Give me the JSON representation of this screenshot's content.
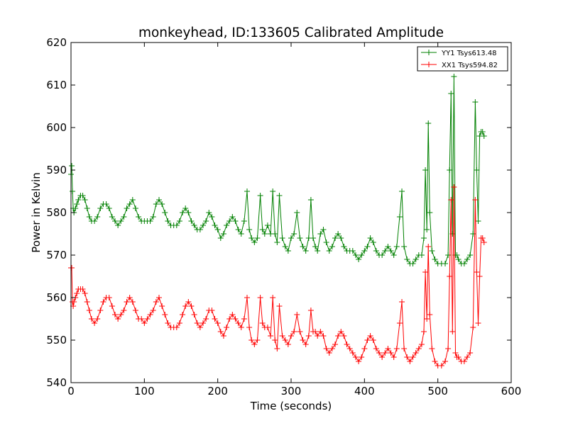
{
  "chart_data": {
    "type": "line",
    "title": "monkeyhead, ID:133605 Calibrated Amplitude",
    "xlabel": "Time (seconds)",
    "ylabel": "Power in Kelvin",
    "xlim": [
      0,
      600
    ],
    "ylim": [
      540,
      620
    ],
    "xticks": [
      0,
      100,
      200,
      300,
      400,
      500,
      600
    ],
    "yticks": [
      540,
      550,
      560,
      570,
      580,
      590,
      600,
      610,
      620
    ],
    "grid": false,
    "legend_position": "top-right",
    "marker": "+",
    "series": [
      {
        "name": "YY1 Tsys613.48",
        "color": "#008000",
        "x": [
          0,
          1,
          2,
          3,
          4,
          6,
          8,
          10,
          13,
          16,
          19,
          22,
          25,
          28,
          32,
          36,
          40,
          44,
          48,
          52,
          56,
          60,
          64,
          68,
          72,
          76,
          80,
          84,
          88,
          92,
          96,
          100,
          104,
          108,
          112,
          116,
          120,
          124,
          128,
          132,
          136,
          140,
          144,
          148,
          152,
          156,
          160,
          164,
          168,
          172,
          176,
          180,
          184,
          188,
          192,
          196,
          200,
          204,
          208,
          212,
          216,
          220,
          224,
          228,
          232,
          236,
          240,
          243,
          246,
          250,
          254,
          258,
          261,
          264,
          268,
          272,
          275,
          278,
          281,
          284,
          288,
          292,
          296,
          300,
          304,
          308,
          312,
          316,
          320,
          324,
          327,
          330,
          333,
          336,
          340,
          344,
          348,
          352,
          356,
          360,
          364,
          368,
          372,
          376,
          380,
          384,
          388,
          392,
          396,
          400,
          404,
          408,
          412,
          416,
          420,
          424,
          428,
          432,
          436,
          440,
          444,
          448,
          451,
          454,
          458,
          462,
          466,
          470,
          474,
          478,
          481,
          483,
          485,
          487,
          489,
          492,
          496,
          500,
          505,
          510,
          514,
          516,
          518,
          520,
          522,
          524,
          526,
          528,
          532,
          536,
          540,
          544,
          548,
          551,
          553,
          555,
          557,
          559,
          561,
          563
        ],
        "y": [
          589,
          591,
          585,
          581,
          580,
          581,
          582,
          583,
          584,
          584,
          583,
          581,
          579,
          578,
          578,
          579,
          581,
          582,
          582,
          581,
          579,
          578,
          577,
          578,
          579,
          581,
          582,
          583,
          581,
          579,
          578,
          578,
          578,
          578,
          579,
          582,
          583,
          582,
          580,
          578,
          577,
          577,
          577,
          578,
          580,
          581,
          580,
          578,
          577,
          576,
          576,
          577,
          578,
          580,
          579,
          577,
          576,
          574,
          575,
          577,
          578,
          579,
          578,
          576,
          575,
          578,
          585,
          576,
          574,
          573,
          574,
          584,
          576,
          575,
          577,
          575,
          585,
          575,
          573,
          584,
          574,
          572,
          571,
          574,
          575,
          580,
          574,
          572,
          571,
          574,
          583,
          574,
          572,
          571,
          575,
          576,
          573,
          571,
          572,
          574,
          575,
          574,
          572,
          571,
          571,
          571,
          570,
          569,
          570,
          571,
          572,
          574,
          573,
          571,
          570,
          570,
          571,
          572,
          571,
          570,
          572,
          579,
          585,
          572,
          569,
          568,
          568,
          569,
          570,
          570,
          574,
          590,
          576,
          601,
          580,
          571,
          569,
          568,
          568,
          568,
          570,
          590,
          608,
          575,
          612,
          570,
          570,
          569,
          568,
          568,
          569,
          570,
          575,
          606,
          590,
          578,
          598,
          599,
          599,
          598
        ]
      },
      {
        "name": "XX1 Tsys594.82",
        "color": "#ff0000",
        "x": [
          0,
          1,
          2,
          3,
          4,
          6,
          8,
          10,
          13,
          16,
          19,
          22,
          25,
          28,
          32,
          36,
          40,
          44,
          48,
          52,
          56,
          60,
          64,
          68,
          72,
          76,
          80,
          84,
          88,
          92,
          96,
          100,
          104,
          108,
          112,
          116,
          120,
          124,
          128,
          132,
          136,
          140,
          144,
          148,
          152,
          156,
          160,
          164,
          168,
          172,
          176,
          180,
          184,
          188,
          192,
          196,
          200,
          204,
          208,
          212,
          216,
          220,
          224,
          228,
          232,
          236,
          240,
          243,
          246,
          250,
          254,
          258,
          261,
          264,
          268,
          272,
          275,
          278,
          281,
          284,
          288,
          292,
          296,
          300,
          304,
          308,
          312,
          316,
          320,
          324,
          327,
          330,
          333,
          336,
          340,
          344,
          348,
          352,
          356,
          360,
          364,
          368,
          372,
          376,
          380,
          384,
          388,
          392,
          396,
          400,
          404,
          408,
          412,
          416,
          420,
          424,
          428,
          432,
          436,
          440,
          444,
          448,
          451,
          454,
          458,
          462,
          466,
          470,
          474,
          478,
          481,
          483,
          485,
          487,
          489,
          492,
          496,
          500,
          505,
          510,
          514,
          516,
          518,
          520,
          522,
          524,
          526,
          528,
          532,
          536,
          540,
          544,
          548,
          551,
          553,
          555,
          557,
          559,
          561,
          563
        ],
        "y": [
          567,
          567,
          559,
          558,
          559,
          560,
          561,
          562,
          562,
          562,
          561,
          559,
          557,
          555,
          554,
          555,
          557,
          559,
          560,
          560,
          558,
          556,
          555,
          556,
          557,
          559,
          560,
          559,
          557,
          555,
          555,
          554,
          555,
          556,
          557,
          559,
          560,
          558,
          556,
          554,
          553,
          553,
          553,
          554,
          556,
          558,
          559,
          558,
          556,
          554,
          553,
          554,
          555,
          557,
          557,
          555,
          554,
          552,
          551,
          553,
          555,
          556,
          555,
          554,
          553,
          555,
          560,
          553,
          550,
          549,
          550,
          560,
          554,
          553,
          553,
          551,
          560,
          550,
          548,
          558,
          551,
          550,
          549,
          551,
          552,
          556,
          552,
          550,
          549,
          551,
          557,
          552,
          552,
          551,
          552,
          551,
          548,
          547,
          548,
          549,
          551,
          552,
          551,
          549,
          548,
          547,
          546,
          545,
          546,
          548,
          550,
          551,
          550,
          548,
          547,
          546,
          547,
          548,
          547,
          546,
          548,
          554,
          559,
          548,
          546,
          545,
          546,
          547,
          548,
          549,
          552,
          566,
          555,
          572,
          556,
          548,
          545,
          544,
          544,
          545,
          548,
          565,
          583,
          552,
          586,
          547,
          546,
          546,
          545,
          545,
          546,
          547,
          553,
          583,
          566,
          554,
          565,
          574,
          574,
          573
        ]
      }
    ]
  }
}
